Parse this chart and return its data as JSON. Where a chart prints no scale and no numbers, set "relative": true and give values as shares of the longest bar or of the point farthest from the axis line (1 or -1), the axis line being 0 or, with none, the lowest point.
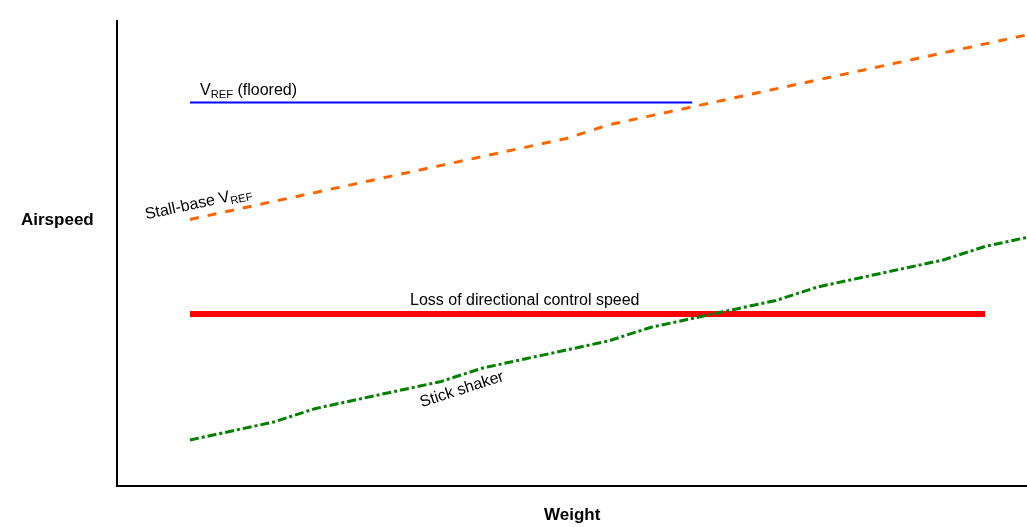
{
  "chart_data": {
    "type": "line",
    "relative": true,
    "xlabel": "Weight",
    "ylabel": "Airspeed",
    "legend": false,
    "marker": "none",
    "categories": [
      null,
      null,
      null,
      null,
      null,
      null,
      null,
      null,
      null,
      null,
      null,
      null,
      null,
      null,
      null,
      null,
      null,
      null,
      null,
      null,
      null
    ],
    "series": [
      {
        "name": "V$_{REF}$ (floored)",
        "color": "#0000ff",
        "line_style": "solid",
        "values": [
          0.85,
          0.85,
          0.85,
          0.85,
          0.85,
          0.85,
          0.85,
          0.85,
          0.85,
          0.85,
          0.85,
          0.85,
          0.85,
          null,
          null,
          null,
          null,
          null,
          null,
          null,
          null
        ]
      },
      {
        "name": "Stall-base V$_{REF}$",
        "color": "#ff6600",
        "line_style": "dashed",
        "values": [
          0.59,
          0.61,
          0.63,
          0.65,
          0.67,
          0.69,
          0.71,
          0.73,
          0.75,
          0.77,
          0.8,
          0.82,
          0.84,
          0.86,
          0.88,
          0.9,
          0.92,
          0.94,
          0.96,
          0.98,
          1.0
        ]
      },
      {
        "name": "Loss of directional control speed",
        "color": "#ff0000",
        "line_style": "solid",
        "values": [
          0.38,
          0.38,
          0.38,
          0.38,
          0.38,
          0.38,
          0.38,
          0.38,
          0.38,
          0.38,
          0.38,
          0.38,
          0.38,
          0.38,
          0.38,
          0.38,
          0.38,
          0.38,
          0.38,
          0.38,
          null
        ]
      },
      {
        "name": "Stick shaker",
        "color": "#008000",
        "line_style": "dashdot",
        "values": [
          0.1,
          0.12,
          0.14,
          0.17,
          0.19,
          0.21,
          0.23,
          0.26,
          0.28,
          0.3,
          0.32,
          0.35,
          0.37,
          0.39,
          0.41,
          0.44,
          0.46,
          0.48,
          0.5,
          0.53,
          0.55
        ]
      }
    ]
  }
}
